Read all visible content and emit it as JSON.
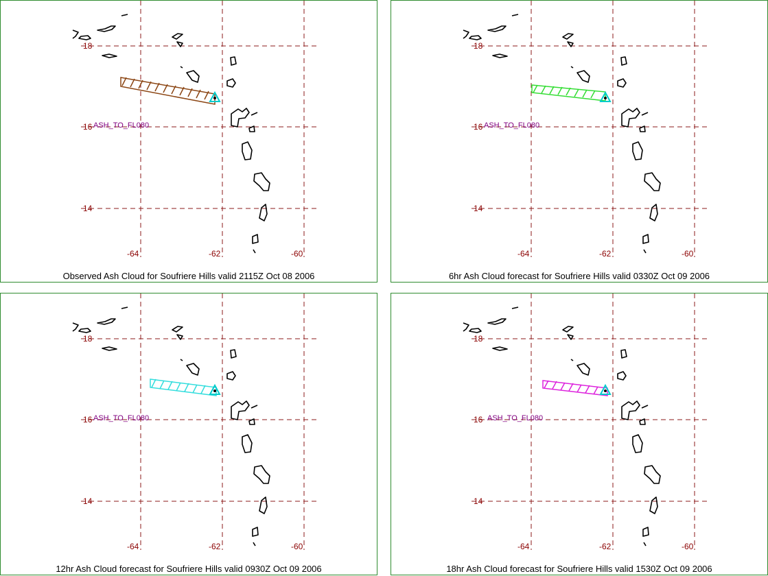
{
  "panels": [
    {
      "caption": "Observed Ash Cloud for Soufriere  Hills valid 2115Z Oct 08 2006",
      "ash_label": "ASH_TO_FL080",
      "cloud_color": "#8b4513"
    },
    {
      "caption": "6hr Ash Cloud forecast for Soufriere  Hills valid 0330Z Oct 09 2006",
      "ash_label": "ASH_TO_FL080",
      "cloud_color": "#33dd33"
    },
    {
      "caption": "12hr Ash Cloud forecast for Soufriere  Hills valid 0930Z Oct 09 2006",
      "ash_label": "ASH_TO_FL080",
      "cloud_color": "#33dddd"
    },
    {
      "caption": "18hr Ash Cloud forecast for Soufriere  Hills valid 1530Z Oct 09 2006",
      "ash_label": "ASH_TO_FL080",
      "cloud_color": "#dd22dd"
    }
  ],
  "lat_labels": [
    "18",
    "16",
    "14"
  ],
  "lon_labels": [
    "-64",
    "-62",
    "-60"
  ],
  "colors": {
    "grid": "#8b1a1a",
    "labels": "#8b0000",
    "ash_label": "#800080",
    "volcano_marker": "#00cccc",
    "border": "#2e8b2e"
  }
}
